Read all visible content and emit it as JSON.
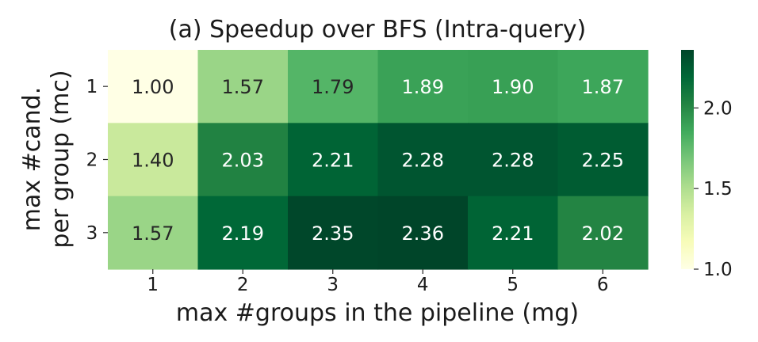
{
  "chart_data": {
    "type": "heatmap",
    "title": "(a) Speedup over BFS (Intra-query)",
    "xlabel": "max #groups in the pipeline (mg)",
    "ylabel_lines": [
      "max #cand.",
      "per group (mc)"
    ],
    "x_categories": [
      "1",
      "2",
      "3",
      "4",
      "5",
      "6"
    ],
    "y_categories": [
      "1",
      "2",
      "3"
    ],
    "values": [
      [
        1.0,
        1.57,
        1.79,
        1.89,
        1.9,
        1.87
      ],
      [
        1.4,
        2.03,
        2.21,
        2.28,
        2.28,
        2.25
      ],
      [
        1.57,
        2.19,
        2.35,
        2.36,
        2.21,
        2.02
      ]
    ],
    "labels": [
      [
        "1.00",
        "1.57",
        "1.79",
        "1.89",
        "1.90",
        "1.87"
      ],
      [
        "1.40",
        "2.03",
        "2.21",
        "2.28",
        "2.28",
        "2.25"
      ],
      [
        "1.57",
        "2.19",
        "2.35",
        "2.36",
        "2.21",
        "2.02"
      ]
    ],
    "colormap": "YlGn",
    "color_range": [
      1.0,
      2.36
    ],
    "colorbar_ticks": [
      "1.0",
      "1.5",
      "2.0"
    ],
    "colorbar_tick_values": [
      1.0,
      1.5,
      2.0
    ],
    "grid": false,
    "legend": "colorbar-right"
  }
}
